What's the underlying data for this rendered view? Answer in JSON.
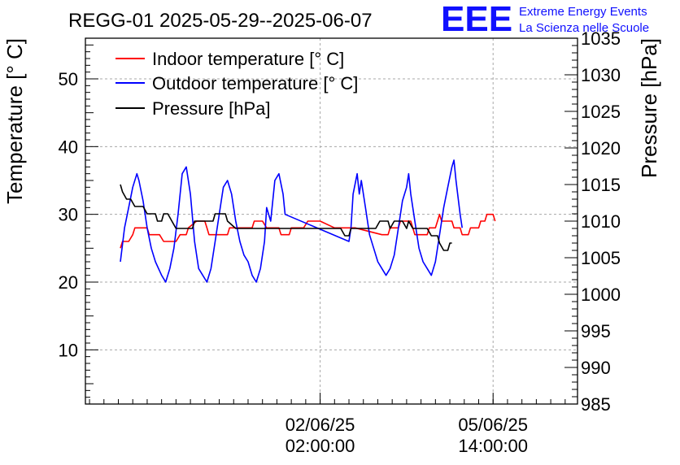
{
  "chart_data": {
    "type": "line",
    "title": "REGG-01 2025-05-29--2025-06-07",
    "xlabel": "",
    "ylabel": "Temperature [° C]",
    "y2label": "Pressure [hPa]",
    "x_unit": "hours since 2025-05-29 00:00",
    "xlim": [
      -16,
      223
    ],
    "ylim": [
      2,
      56
    ],
    "y2lim": [
      985,
      1035
    ],
    "grid": true,
    "legend_position": "top-left",
    "x_ticks": [
      {
        "x": 98,
        "line1": "02/06/25",
        "line2": "02:00:00"
      },
      {
        "x": 182,
        "line1": "05/06/25",
        "line2": "14:00:00"
      }
    ],
    "y_ticks": [
      10,
      20,
      30,
      40,
      50
    ],
    "y2_ticks": [
      985,
      990,
      995,
      1000,
      1005,
      1010,
      1015,
      1020,
      1025,
      1030,
      1035
    ],
    "series": [
      {
        "name": "Indoor temperature [° C]",
        "axis": "left",
        "color": "#ff0000",
        "points": [
          [
            1,
            25
          ],
          [
            2,
            26
          ],
          [
            5,
            26
          ],
          [
            7,
            27
          ],
          [
            8,
            28
          ],
          [
            14,
            28
          ],
          [
            15,
            27
          ],
          [
            20,
            27
          ],
          [
            22,
            26
          ],
          [
            28,
            26
          ],
          [
            30,
            27
          ],
          [
            33,
            27
          ],
          [
            34,
            28
          ],
          [
            38,
            29
          ],
          [
            42,
            29
          ],
          [
            43,
            28
          ],
          [
            44,
            27
          ],
          [
            53,
            27
          ],
          [
            54,
            28
          ],
          [
            65,
            28
          ],
          [
            66,
            29
          ],
          [
            70,
            29
          ],
          [
            72,
            28
          ],
          [
            78,
            28
          ],
          [
            79,
            27
          ],
          [
            83,
            27
          ],
          [
            84,
            28
          ],
          [
            90,
            28
          ],
          [
            92,
            29
          ],
          [
            98,
            29
          ],
          [
            105,
            28
          ],
          [
            115,
            28
          ],
          [
            128,
            27
          ],
          [
            131,
            27
          ],
          [
            132,
            28
          ],
          [
            136,
            28
          ],
          [
            137,
            29
          ],
          [
            142,
            29
          ],
          [
            143,
            28
          ],
          [
            144,
            27
          ],
          [
            150,
            27
          ],
          [
            151,
            28
          ],
          [
            154,
            28
          ],
          [
            155,
            29
          ],
          [
            156,
            30
          ],
          [
            157,
            29
          ],
          [
            162,
            29
          ],
          [
            163,
            28
          ],
          [
            166,
            28
          ],
          [
            167,
            27
          ],
          [
            170,
            27
          ],
          [
            171,
            28
          ],
          [
            175,
            28
          ],
          [
            176,
            29
          ],
          [
            178,
            29
          ],
          [
            179,
            30
          ],
          [
            182,
            30
          ],
          [
            183,
            29
          ]
        ]
      },
      {
        "name": "Outdoor temperature [° C]",
        "axis": "left",
        "color": "#0000ff",
        "points": [
          [
            1,
            23
          ],
          [
            3,
            28
          ],
          [
            5,
            31
          ],
          [
            7,
            34
          ],
          [
            9,
            36
          ],
          [
            10,
            35
          ],
          [
            12,
            32
          ],
          [
            14,
            28
          ],
          [
            16,
            25
          ],
          [
            18,
            23
          ],
          [
            21,
            21
          ],
          [
            23,
            20
          ],
          [
            25,
            22
          ],
          [
            27,
            25
          ],
          [
            29,
            30
          ],
          [
            31,
            36
          ],
          [
            33,
            37
          ],
          [
            35,
            33
          ],
          [
            37,
            26
          ],
          [
            39,
            22
          ],
          [
            41,
            21
          ],
          [
            43,
            20
          ],
          [
            45,
            22
          ],
          [
            47,
            26
          ],
          [
            49,
            30
          ],
          [
            51,
            34
          ],
          [
            53,
            35
          ],
          [
            55,
            33
          ],
          [
            57,
            29
          ],
          [
            59,
            26
          ],
          [
            61,
            24
          ],
          [
            63,
            23
          ],
          [
            65,
            21
          ],
          [
            67,
            20
          ],
          [
            69,
            22
          ],
          [
            71,
            26
          ],
          [
            72,
            31
          ],
          [
            74,
            29
          ],
          [
            76,
            35
          ],
          [
            78,
            36
          ],
          [
            80,
            33
          ],
          [
            81,
            30
          ],
          [
            112,
            26
          ],
          [
            113,
            28
          ],
          [
            114,
            33
          ],
          [
            116,
            36
          ],
          [
            117,
            33
          ],
          [
            118,
            35
          ],
          [
            120,
            31
          ],
          [
            122,
            27
          ],
          [
            124,
            25
          ],
          [
            126,
            23
          ],
          [
            128,
            22
          ],
          [
            130,
            21
          ],
          [
            132,
            22
          ],
          [
            134,
            24
          ],
          [
            136,
            28
          ],
          [
            138,
            32
          ],
          [
            140,
            34
          ],
          [
            141,
            36
          ],
          [
            142,
            33
          ],
          [
            144,
            29
          ],
          [
            146,
            25
          ],
          [
            148,
            23
          ],
          [
            150,
            22
          ],
          [
            152,
            21
          ],
          [
            154,
            23
          ],
          [
            156,
            27
          ],
          [
            158,
            31
          ],
          [
            160,
            34
          ],
          [
            162,
            37
          ],
          [
            163,
            38
          ],
          [
            164,
            35
          ],
          [
            166,
            30
          ],
          [
            167,
            28
          ]
        ]
      },
      {
        "name": "Pressure [hPa]",
        "axis": "right",
        "color": "#000000",
        "points": [
          [
            1,
            1015
          ],
          [
            2,
            1014
          ],
          [
            4,
            1013
          ],
          [
            6,
            1013
          ],
          [
            8,
            1012
          ],
          [
            12,
            1012
          ],
          [
            14,
            1011
          ],
          [
            18,
            1011
          ],
          [
            19,
            1010
          ],
          [
            21,
            1010
          ],
          [
            22,
            1011
          ],
          [
            24,
            1011
          ],
          [
            26,
            1010
          ],
          [
            28,
            1009
          ],
          [
            36,
            1009
          ],
          [
            37,
            1010
          ],
          [
            46,
            1010
          ],
          [
            47,
            1011
          ],
          [
            52,
            1011
          ],
          [
            53,
            1010
          ],
          [
            57,
            1009
          ],
          [
            108,
            1009
          ],
          [
            110,
            1008
          ],
          [
            112,
            1008
          ],
          [
            113,
            1009
          ],
          [
            125,
            1009
          ],
          [
            127,
            1010
          ],
          [
            131,
            1010
          ],
          [
            132,
            1009
          ],
          [
            134,
            1010
          ],
          [
            138,
            1010
          ],
          [
            140,
            1009
          ],
          [
            141,
            1010
          ],
          [
            143,
            1009
          ],
          [
            150,
            1009
          ],
          [
            152,
            1008
          ],
          [
            155,
            1008
          ],
          [
            156,
            1007
          ],
          [
            158,
            1006
          ],
          [
            160,
            1006
          ],
          [
            161,
            1007
          ],
          [
            162,
            1007
          ]
        ]
      }
    ]
  },
  "logo": {
    "mark": "EEE",
    "line1": "Extreme Energy Events",
    "line2": "La Scienza nelle Scuole",
    "color": "#1010ff"
  }
}
